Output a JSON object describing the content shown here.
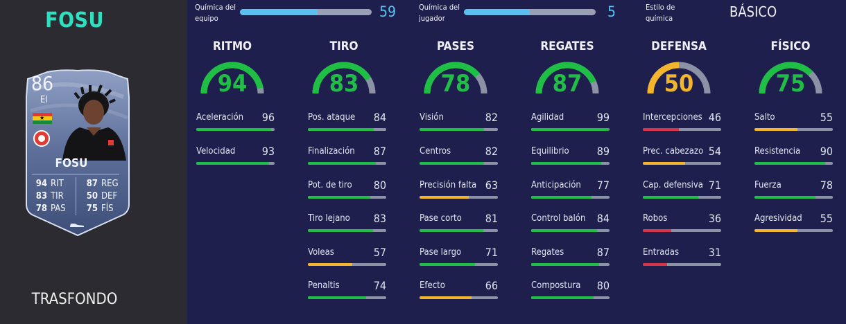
{
  "player_name": "FOSU",
  "bottom_label": "TRASFONDO",
  "card": {
    "rating": "86",
    "position": "EI",
    "name": "FOSU",
    "stats_left": [
      [
        "94",
        "RIT"
      ],
      [
        "83",
        "TIR"
      ],
      [
        "78",
        "PAS"
      ]
    ],
    "stats_right": [
      [
        "87",
        "REG"
      ],
      [
        "50",
        "DEF"
      ],
      [
        "75",
        "FÍS"
      ]
    ],
    "flag_colors": [
      "#e23a33",
      "#f5c518",
      "#1a8a3a"
    ]
  },
  "chemistry": {
    "team_label_1": "Química del",
    "team_label_2": "equipo",
    "team_value": "59",
    "team_fraction": 0.59,
    "player_label_1": "Química del",
    "player_label_2": "jugador",
    "player_value": "5",
    "player_fraction": 0.5,
    "style_label_1": "Estilo de",
    "style_label_2": "química",
    "style_value": "BÁSICO"
  },
  "colors": {
    "green": "#1fbf45",
    "yellow": "#f2b52c",
    "red": "#d93347",
    "accent": "#56c4ef",
    "track": "#8c92a6"
  },
  "categories": [
    {
      "name": "RITMO",
      "value": 94,
      "stats": [
        {
          "name": "Aceleración",
          "value": 96
        },
        {
          "name": "Velocidad",
          "value": 93
        }
      ]
    },
    {
      "name": "TIRO",
      "value": 83,
      "stats": [
        {
          "name": "Pos. ataque",
          "value": 84
        },
        {
          "name": "Finalización",
          "value": 87
        },
        {
          "name": "Pot. de tiro",
          "value": 80
        },
        {
          "name": "Tiro lejano",
          "value": 83
        },
        {
          "name": "Voleas",
          "value": 57
        },
        {
          "name": "Penaltis",
          "value": 74
        }
      ]
    },
    {
      "name": "PASES",
      "value": 78,
      "stats": [
        {
          "name": "Visión",
          "value": 82
        },
        {
          "name": "Centros",
          "value": 82
        },
        {
          "name": "Precisión falta",
          "value": 63
        },
        {
          "name": "Pase corto",
          "value": 81
        },
        {
          "name": "Pase largo",
          "value": 71
        },
        {
          "name": "Efecto",
          "value": 66
        }
      ]
    },
    {
      "name": "REGATES",
      "value": 87,
      "stats": [
        {
          "name": "Agilidad",
          "value": 99
        },
        {
          "name": "Equilibrio",
          "value": 89
        },
        {
          "name": "Anticipación",
          "value": 77
        },
        {
          "name": "Control balón",
          "value": 84
        },
        {
          "name": "Regates",
          "value": 87
        },
        {
          "name": "Compostura",
          "value": 80
        }
      ]
    },
    {
      "name": "DEFENSA",
      "value": 50,
      "stats": [
        {
          "name": "Intercepciones",
          "value": 46
        },
        {
          "name": "Prec. cabezazo",
          "value": 54
        },
        {
          "name": "Cap. defensiva",
          "value": 71
        },
        {
          "name": "Robos",
          "value": 36
        },
        {
          "name": "Entradas",
          "value": 31
        }
      ]
    },
    {
      "name": "FÍSICO",
      "value": 75,
      "stats": [
        {
          "name": "Salto",
          "value": 55
        },
        {
          "name": "Resistencia",
          "value": 90
        },
        {
          "name": "Fuerza",
          "value": 78
        },
        {
          "name": "Agresividad",
          "value": 55
        }
      ]
    }
  ]
}
